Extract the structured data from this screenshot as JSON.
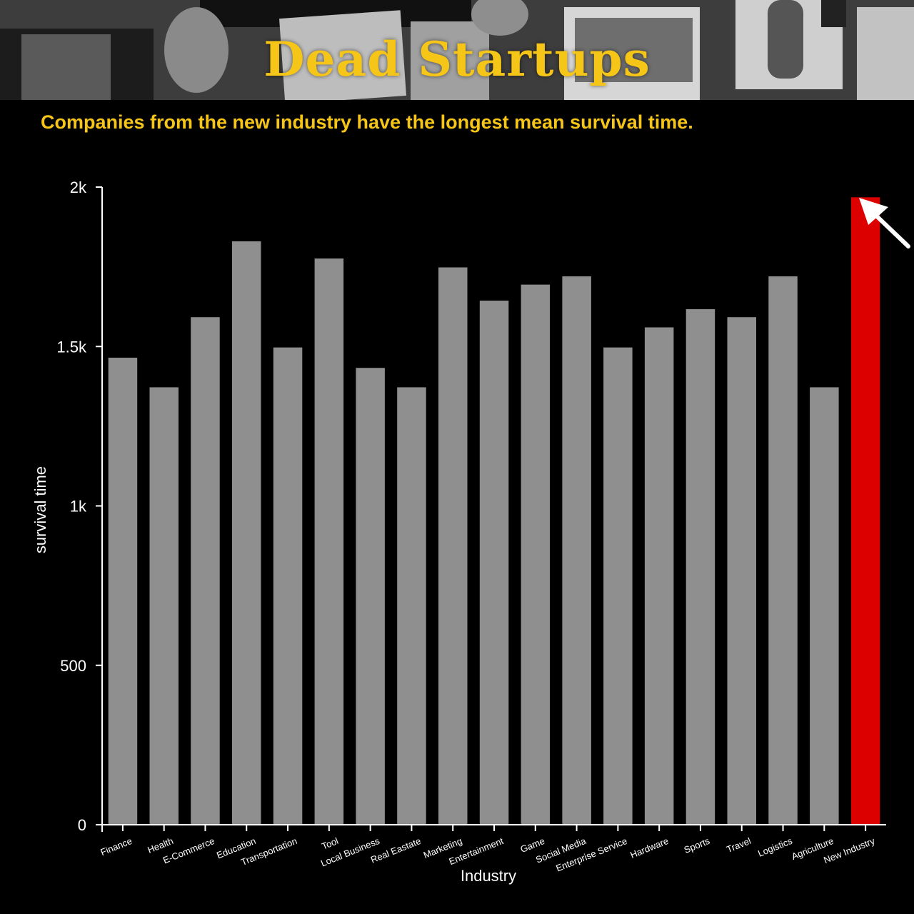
{
  "header": {
    "title": "Dead Startups",
    "subtitle": "Companies from the new industry have the longest mean survival time."
  },
  "colors": {
    "accent": "#f5c518",
    "bar": "#8f8f8f",
    "highlight": "#dd0000",
    "axis": "#ffffff",
    "background": "#000000"
  },
  "chart_data": {
    "type": "bar",
    "title": "",
    "xlabel": "Industry",
    "ylabel": "survival time",
    "ylim": [
      0,
      2000
    ],
    "yticks": [
      0,
      500,
      1000,
      1500,
      2000
    ],
    "ytick_labels": [
      "0",
      "500",
      "1k",
      "1.5k",
      "2k"
    ],
    "categories": [
      "Finance",
      "Health",
      "E-Commerce",
      "Education",
      "Transportation",
      "Tool",
      "Local Business",
      "Real Eastate",
      "Marketing",
      "Entertainment",
      "Game",
      "Social Media",
      "Enterprise Service",
      "Hardware",
      "Sports",
      "Travel",
      "Logistics",
      "Agriculture",
      "New Industry"
    ],
    "values": [
      1465,
      1372,
      1592,
      1830,
      1497,
      1776,
      1433,
      1372,
      1748,
      1644,
      1694,
      1720,
      1497,
      1560,
      1617,
      1592,
      1720,
      1372,
      1968
    ],
    "highlight": "New Industry",
    "annotation": "arrow pointing to New Industry bar",
    "grid": false,
    "legend": "none"
  }
}
